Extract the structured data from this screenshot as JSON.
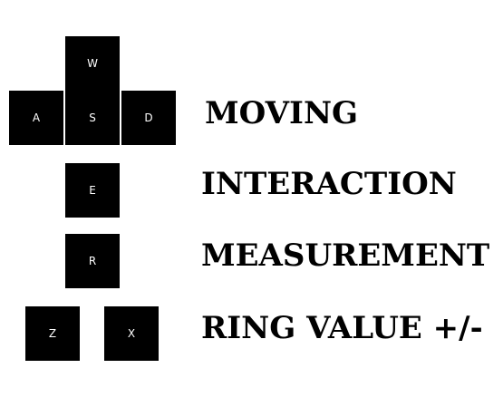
{
  "keys": {
    "w": "W",
    "a": "A",
    "s": "S",
    "d": "D",
    "e": "E",
    "r": "R",
    "z": "Z",
    "x": "X"
  },
  "labels": {
    "moving": "MOVING",
    "interaction": "INTERACTION",
    "measurement": "MEASUREMENT",
    "ring_value": "RING VALUE +/-"
  },
  "colors": {
    "key_background": "#000000",
    "key_text": "#ffffff",
    "label_text": "#000000",
    "page_background": "#ffffff"
  }
}
